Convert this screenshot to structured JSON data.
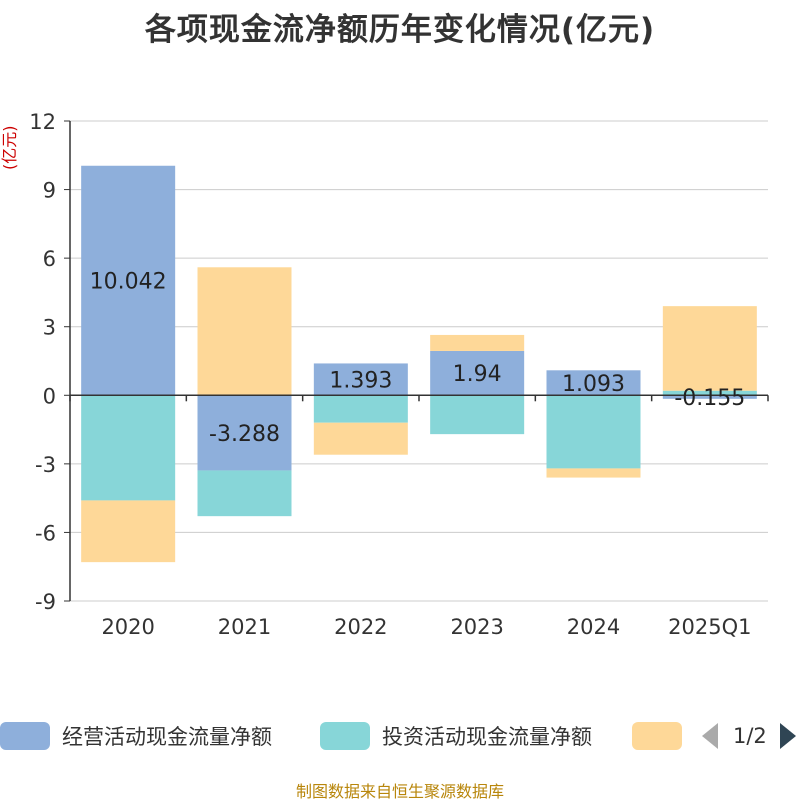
{
  "chart_data": {
    "type": "bar",
    "stacked": true,
    "title": "各项现金流净额历年变化情况(亿元)",
    "ylabel": "(亿元)",
    "categories": [
      "2020",
      "2021",
      "2022",
      "2023",
      "2024",
      "2025Q1"
    ],
    "ylim": [
      -9,
      12
    ],
    "yticks": [
      "12",
      "9",
      "6",
      "3",
      "0",
      "-3",
      "-6",
      "-9"
    ],
    "grid": true,
    "legend_position": "bottom",
    "series": [
      {
        "name": "经营活动现金流量净额",
        "color": "#8eafdb",
        "values": [
          10.042,
          -3.288,
          1.393,
          1.94,
          1.093,
          -0.155
        ],
        "labels": [
          "10.042",
          "-3.288",
          "1.393",
          "1.94",
          "1.093",
          "-0.155"
        ]
      },
      {
        "name": "投资活动现金流量净额",
        "color": "#87d6d8",
        "values": [
          -4.6,
          -2.0,
          -1.2,
          -1.7,
          -3.2,
          0.2
        ]
      },
      {
        "name": "",
        "color": "#fed898",
        "values": [
          -2.7,
          5.6,
          -1.4,
          0.7,
          -0.4,
          3.7
        ]
      }
    ]
  },
  "legend": {
    "items": [
      {
        "label": "经营活动现金流量净额",
        "color": "#8eafdb"
      },
      {
        "label": "投资活动现金流量净额",
        "color": "#87d6d8"
      },
      {
        "label": "",
        "color": "#fed898"
      }
    ],
    "page": "1/2"
  },
  "footer": "制图数据来自恒生聚源数据库"
}
